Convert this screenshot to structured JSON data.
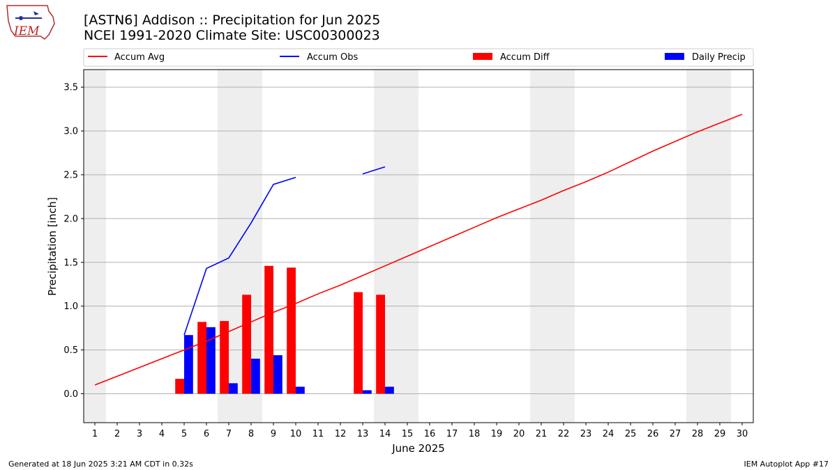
{
  "logo": {
    "text": "IEM"
  },
  "title_line1": "[ASTN6] Addison :: Precipitation for Jun 2025",
  "title_line2": "NCEI 1991-2020 Climate Site: USC00300023",
  "footer_left": "Generated at 18 Jun 2025 3:21 AM CDT in 0.32s",
  "footer_right": "IEM Autoplot App #17",
  "colors": {
    "avg": "#ff0000",
    "obs": "#0000ff",
    "diff": "#ff0000",
    "daily": "#0000ff",
    "weekend": "#eeeeee",
    "grid": "#b0b0b0"
  },
  "chart_data": {
    "type": "bar",
    "title": "[ASTN6] Addison :: Precipitation for Jun 2025",
    "subtitle": "NCEI 1991-2020 Climate Site: USC00300023",
    "xlabel": "June 2025",
    "ylabel": "Precipitation [inch]",
    "xlim": [
      0.5,
      30.5
    ],
    "ylim": [
      -0.33,
      3.7
    ],
    "x_ticks": [
      1,
      2,
      3,
      4,
      5,
      6,
      7,
      8,
      9,
      10,
      11,
      12,
      13,
      14,
      15,
      16,
      17,
      18,
      19,
      20,
      21,
      22,
      23,
      24,
      25,
      26,
      27,
      28,
      29,
      30
    ],
    "y_ticks": [
      0.0,
      0.5,
      1.0,
      1.5,
      2.0,
      2.5,
      3.0,
      3.5
    ],
    "y_tick_labels": [
      "0.0",
      "0.5",
      "1.0",
      "1.5",
      "2.0",
      "2.5",
      "3.0",
      "3.5"
    ],
    "grid": "y",
    "legend_position": "top",
    "weekend_shading": [
      [
        0.5,
        1.5
      ],
      [
        6.5,
        8.5
      ],
      [
        13.5,
        15.5
      ],
      [
        20.5,
        22.5
      ],
      [
        27.5,
        29.5
      ]
    ],
    "series": [
      {
        "name": "Accum Avg",
        "kind": "line",
        "x": [
          1,
          2,
          3,
          4,
          5,
          6,
          7,
          8,
          9,
          10,
          11,
          12,
          13,
          14,
          15,
          16,
          17,
          18,
          19,
          20,
          21,
          22,
          23,
          24,
          25,
          26,
          27,
          28,
          29,
          30
        ],
        "values": [
          0.1,
          0.2,
          0.3,
          0.4,
          0.5,
          0.6,
          0.71,
          0.82,
          0.93,
          1.03,
          1.14,
          1.24,
          1.35,
          1.46,
          1.57,
          1.68,
          1.79,
          1.9,
          2.01,
          2.11,
          2.21,
          2.32,
          2.42,
          2.53,
          2.65,
          2.77,
          2.88,
          2.99,
          3.09,
          3.19
        ]
      },
      {
        "name": "Accum Obs",
        "kind": "line",
        "segments": [
          {
            "x": [
              5,
              6,
              7,
              8,
              9,
              10
            ],
            "values": [
              0.67,
              1.43,
              1.55,
              1.95,
              2.39,
              2.47
            ]
          },
          {
            "x": [
              13,
              14
            ],
            "values": [
              2.51,
              2.59
            ]
          }
        ]
      },
      {
        "name": "Accum Diff",
        "kind": "bar",
        "offset": -0.2,
        "x": [
          5,
          6,
          7,
          8,
          9,
          10,
          13,
          14
        ],
        "values": [
          0.17,
          0.82,
          0.83,
          1.13,
          1.46,
          1.44,
          1.16,
          1.13
        ]
      },
      {
        "name": "Daily Precip",
        "kind": "bar",
        "offset": 0.2,
        "x": [
          5,
          6,
          7,
          8,
          9,
          10,
          13,
          14
        ],
        "values": [
          0.67,
          0.76,
          0.12,
          0.4,
          0.44,
          0.08,
          0.04,
          0.08
        ]
      }
    ]
  }
}
